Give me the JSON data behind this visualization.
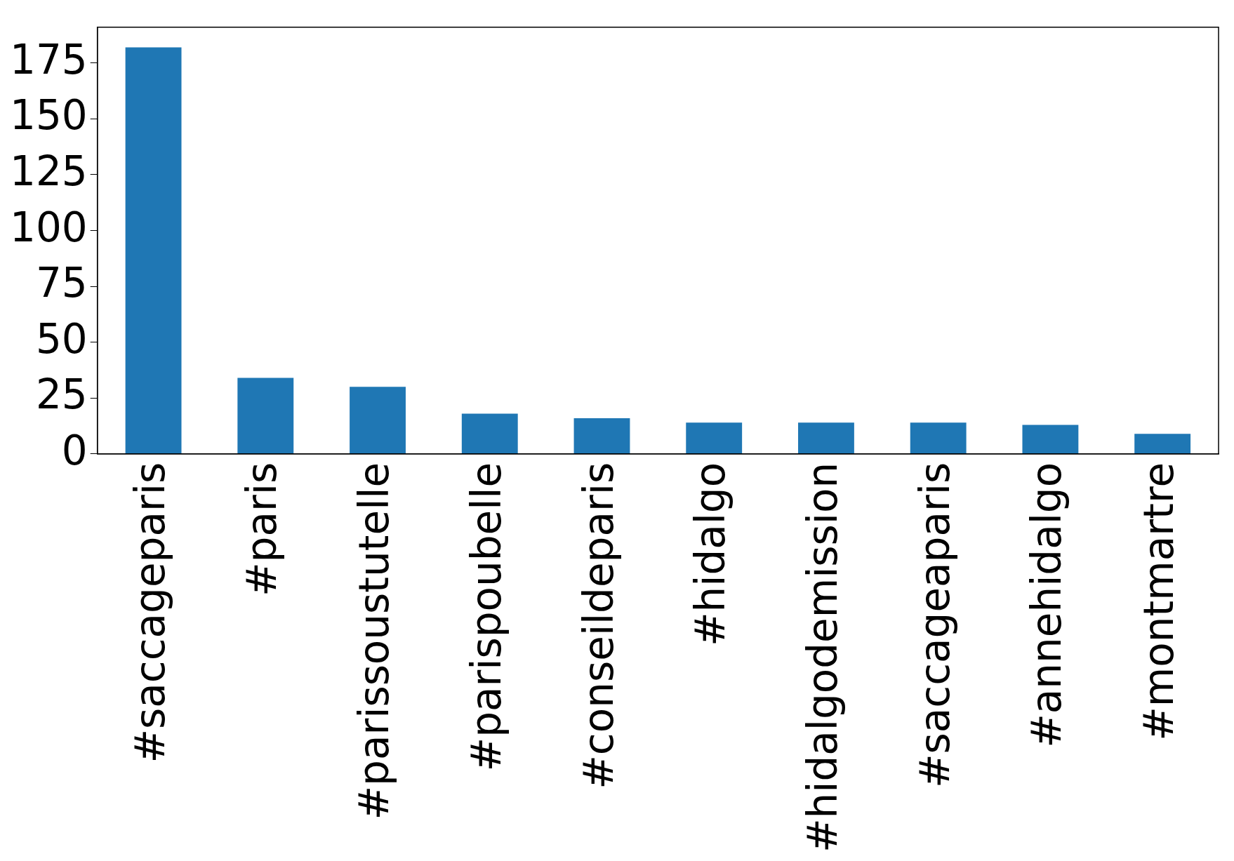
{
  "chart_data": {
    "type": "bar",
    "categories": [
      "#saccageparis",
      "#paris",
      "#parissoustutelle",
      "#parispoubelle",
      "#conseildeparis",
      "#hidalgo",
      "#hidalgodemission",
      "#saccageaparis",
      "#annehidalgo",
      "#montmartre"
    ],
    "values": [
      182,
      34,
      30,
      18,
      16,
      14,
      14,
      14,
      13,
      9
    ],
    "color": "#1f77b4",
    "ylim": [
      0,
      191
    ],
    "yticks": [
      0,
      25,
      50,
      75,
      100,
      125,
      150,
      175
    ],
    "grid": false,
    "legend": false
  }
}
